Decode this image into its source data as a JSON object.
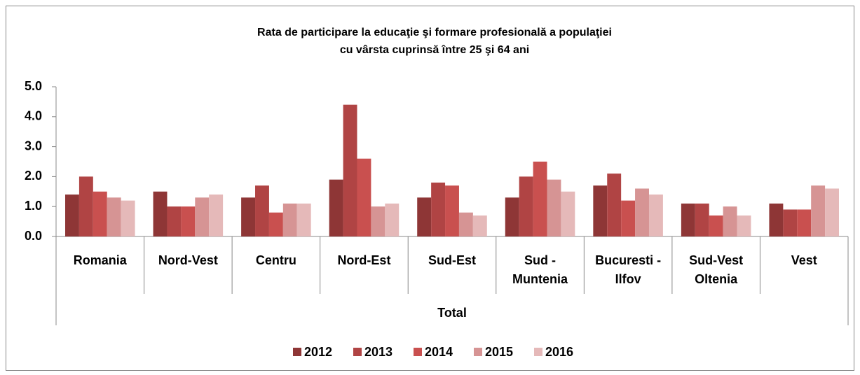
{
  "chart_data": {
    "type": "bar",
    "title": "Rata de participare la educaţie şi formare profesională a populaţiei",
    "subtitle": "cu vârsta cuprinsă între 25 şi 64 ani",
    "x_label": "Total",
    "categories": [
      "Romania",
      "Nord-Vest",
      "Centru",
      "Nord-Est",
      "Sud-Est",
      "Sud - Muntenia",
      "Bucuresti - Ilfov",
      "Sud-Vest Oltenia",
      "Vest"
    ],
    "series": [
      {
        "name": "2012",
        "color": "#8e3636",
        "values": [
          1.4,
          1.5,
          1.3,
          1.9,
          1.3,
          1.3,
          1.7,
          1.1,
          1.1
        ]
      },
      {
        "name": "2013",
        "color": "#b04444",
        "values": [
          2.0,
          1.0,
          1.7,
          4.4,
          1.8,
          2.0,
          2.1,
          1.1,
          0.9
        ]
      },
      {
        "name": "2014",
        "color": "#c9504f",
        "values": [
          1.5,
          1.0,
          0.8,
          2.6,
          1.7,
          2.5,
          1.2,
          0.7,
          0.9
        ]
      },
      {
        "name": "2015",
        "color": "#d69494",
        "values": [
          1.3,
          1.3,
          1.1,
          1.0,
          0.8,
          1.9,
          1.6,
          1.0,
          1.7
        ]
      },
      {
        "name": "2016",
        "color": "#e5b9b9",
        "values": [
          1.2,
          1.4,
          1.1,
          1.1,
          0.7,
          1.5,
          1.4,
          0.7,
          1.6
        ]
      }
    ],
    "ylim": [
      0,
      5
    ],
    "yticks": [
      {
        "value": 0,
        "label": "0.0"
      },
      {
        "value": 1,
        "label": "1.0"
      },
      {
        "value": 2,
        "label": "2.0"
      },
      {
        "value": 3,
        "label": "3.0"
      },
      {
        "value": 4,
        "label": "4.0"
      },
      {
        "value": 5,
        "label": "5.0"
      }
    ],
    "grid": false,
    "legend": "bottom"
  }
}
